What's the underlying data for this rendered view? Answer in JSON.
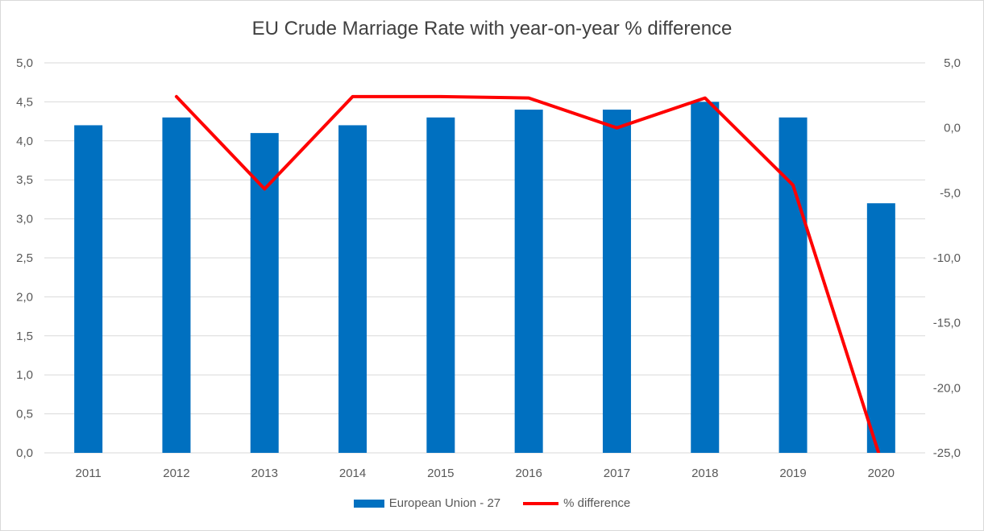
{
  "chart_data": {
    "type": "bar",
    "title": "EU Crude Marriage Rate with year-on-year % difference",
    "categories": [
      "2011",
      "2012",
      "2013",
      "2014",
      "2015",
      "2016",
      "2017",
      "2018",
      "2019",
      "2020"
    ],
    "series": [
      {
        "name": "European Union - 27",
        "type": "bar",
        "axis": "left",
        "color": "#0070c0",
        "values": [
          4.2,
          4.3,
          4.1,
          4.2,
          4.3,
          4.4,
          4.4,
          4.5,
          4.3,
          3.2
        ]
      },
      {
        "name": "% difference",
        "type": "line",
        "axis": "right",
        "color": "#ff0000",
        "values": [
          null,
          2.4,
          -4.7,
          2.4,
          2.4,
          2.3,
          0.0,
          2.3,
          -4.4,
          -25.6
        ]
      }
    ],
    "y_left": {
      "min": 0,
      "max": 5,
      "step": 0.5,
      "tick_labels": [
        "0,0",
        "0,5",
        "1,0",
        "1,5",
        "2,0",
        "2,5",
        "3,0",
        "3,5",
        "4,0",
        "4,5",
        "5,0"
      ]
    },
    "y_right": {
      "min": -25,
      "max": 5,
      "step": 5,
      "tick_labels": [
        "-25,0",
        "-20,0",
        "-15,0",
        "-10,0",
        "-5,0",
        "0,0",
        "5,0"
      ]
    },
    "grid": true,
    "legend": "bottom"
  }
}
